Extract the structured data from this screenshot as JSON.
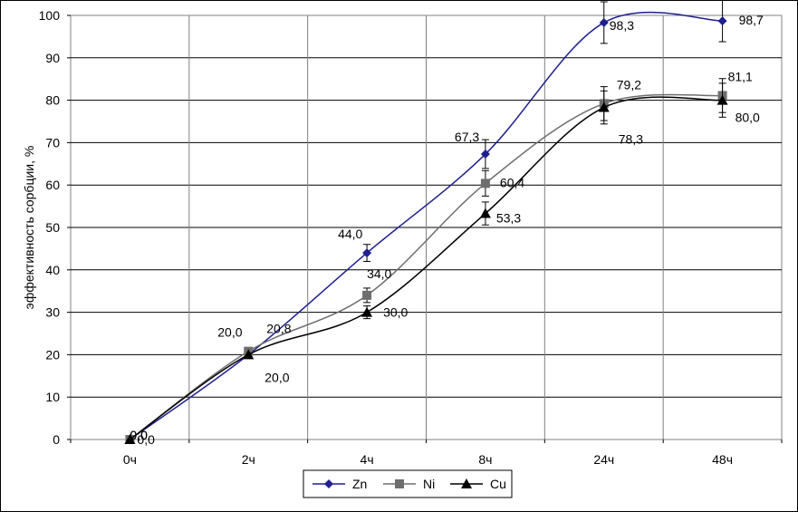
{
  "chart_data": {
    "type": "line",
    "categories": [
      "0ч",
      "2ч",
      "4ч",
      "8ч",
      "24ч",
      "48ч"
    ],
    "ylabel": "эффективность  сорбции,  %",
    "xlabel": "",
    "ylim": [
      0,
      100
    ],
    "yticks": [
      "0",
      "10",
      "20",
      "30",
      "40",
      "50",
      "60",
      "70",
      "80",
      "90",
      "100"
    ],
    "grid": true,
    "legend_position": "bottom",
    "series": [
      {
        "name": "Zn",
        "color": "#1f1f8f",
        "marker": "diamond",
        "values": [
          0,
          20,
          44,
          67.3,
          98.3,
          98.7
        ],
        "labels": [
          "0,0",
          "20,0",
          "44,0",
          "67,3",
          "98,3",
          "98,7"
        ],
        "errors": [
          0,
          0,
          2,
          3.4,
          4.9,
          4.9
        ]
      },
      {
        "name": "Ni",
        "color": "#6e6e6e",
        "marker": "square",
        "values": [
          0,
          20.8,
          34,
          60.4,
          79.2,
          81.1
        ],
        "labels": [
          "0,0",
          "20,8",
          "34,0",
          "60,4",
          "79,2",
          "81,1"
        ],
        "errors": [
          0,
          0,
          1.7,
          3,
          4,
          4
        ]
      },
      {
        "name": "Cu",
        "color": "#000000",
        "marker": "triangle",
        "values": [
          0,
          20,
          30,
          53.3,
          78.3,
          80
        ],
        "labels": [
          "0,0",
          "20,0",
          "30,0",
          "53,3",
          "78,3",
          "80,0"
        ],
        "errors": [
          0,
          0,
          1.5,
          2.7,
          3.9,
          4
        ]
      }
    ]
  }
}
